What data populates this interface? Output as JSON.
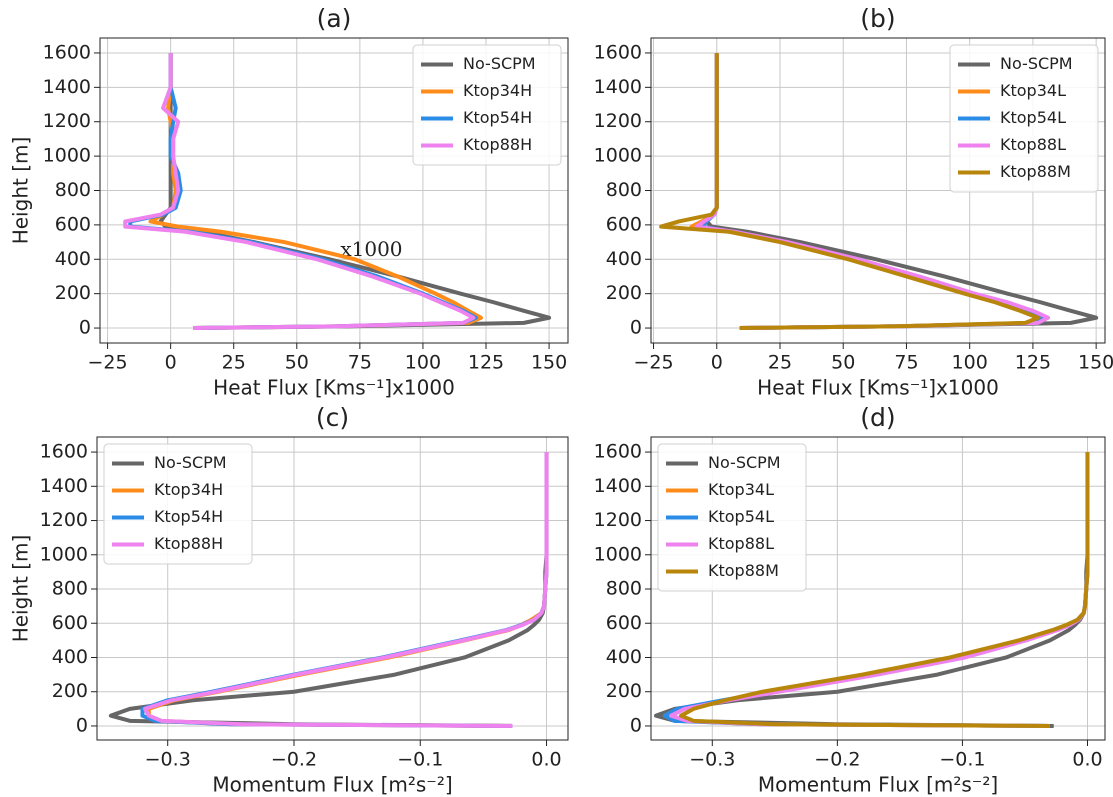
{
  "chart_data": [
    {
      "type": "line",
      "title": "(a)",
      "xlabel": "Heat Flux [Kms⁻¹]x1000",
      "ylabel": "Height [m]",
      "annotation": "x1000",
      "y": [
        0,
        10,
        30,
        60,
        100,
        150,
        200,
        300,
        400,
        500,
        560,
        590,
        620,
        660,
        700,
        800,
        900,
        1000,
        1100,
        1200,
        1280,
        1400,
        1600
      ],
      "series": [
        {
          "name": "No-SCPM",
          "color": "#666666",
          "values": [
            9,
            70,
            140,
            150,
            140,
            128,
            115,
            90,
            63,
            33,
            12,
            -2,
            -4,
            -2,
            0,
            0,
            0,
            0,
            0,
            0,
            0,
            0,
            0
          ]
        },
        {
          "name": "Ktop34H",
          "color": "#ff8c1a",
          "values": [
            9,
            65,
            118,
            123,
            118,
            112,
            105,
            90,
            73,
            45,
            20,
            3,
            -8,
            -3,
            1,
            2,
            1,
            1,
            1,
            0,
            -1,
            0,
            0
          ]
        },
        {
          "name": "Ktop54H",
          "color": "#2b8ce8",
          "values": [
            9,
            65,
            116,
            121,
            116,
            108,
            100,
            82,
            60,
            32,
            8,
            -16,
            -16,
            -3,
            2,
            4,
            3,
            0,
            0,
            1,
            2,
            0,
            0
          ]
        },
        {
          "name": "Ktop88H",
          "color": "#ee82ee",
          "values": [
            9,
            65,
            116,
            120,
            115,
            107,
            99,
            80,
            58,
            30,
            6,
            -18,
            -18,
            -4,
            1,
            3,
            2,
            1,
            1,
            3,
            -3,
            0,
            0
          ]
        }
      ],
      "xlim": [
        -28,
        157.5
      ],
      "ylim": [
        -87,
        1687
      ],
      "xticks": [
        {
          "value": -25,
          "label": "−25"
        },
        0,
        25,
        50,
        75,
        100,
        125,
        150
      ],
      "yticks": [
        0,
        200,
        400,
        600,
        800,
        1000,
        1200,
        1400,
        1600
      ],
      "grid": true,
      "legend": "upper right"
    },
    {
      "type": "line",
      "title": "(b)",
      "xlabel": "Heat Flux [Kms⁻¹]x1000",
      "y": [
        0,
        10,
        30,
        60,
        100,
        150,
        200,
        300,
        400,
        500,
        560,
        590,
        620,
        660,
        700,
        800,
        900,
        1000,
        1100,
        1200,
        1280,
        1400,
        1600
      ],
      "series": [
        {
          "name": "No-SCPM",
          "color": "#666666",
          "values": [
            9,
            70,
            140,
            150,
            140,
            128,
            115,
            90,
            63,
            33,
            12,
            -2,
            -4,
            -2,
            0,
            0,
            0,
            0,
            0,
            0,
            0,
            0,
            0
          ]
        },
        {
          "name": "Ktop34L",
          "color": "#ff8c1a",
          "values": [
            9,
            70,
            124,
            128,
            122,
            112,
            100,
            78,
            54,
            26,
            5,
            -10,
            -6,
            -1,
            0,
            0,
            0,
            0,
            0,
            0,
            0,
            0,
            0
          ]
        },
        {
          "name": "Ktop54L",
          "color": "#2b8ce8",
          "values": [
            9,
            71,
            126,
            130,
            124,
            114,
            101,
            79,
            55,
            27,
            6,
            -6,
            -4,
            -1,
            0,
            0,
            0,
            0,
            0,
            0,
            0,
            0,
            0
          ]
        },
        {
          "name": "Ktop88L",
          "color": "#ee82ee",
          "values": [
            9,
            72,
            127,
            131,
            125,
            115,
            102,
            80,
            56,
            28,
            7,
            -8,
            -5,
            -1,
            0,
            0,
            0,
            0,
            0,
            0,
            0,
            0,
            0
          ]
        },
        {
          "name": "Ktop88M",
          "color": "#b8860b",
          "values": [
            9,
            70,
            122,
            127,
            120,
            110,
            98,
            75,
            52,
            25,
            5,
            -22,
            -15,
            -2,
            0,
            0,
            0,
            0,
            0,
            0,
            0,
            0,
            0
          ]
        }
      ],
      "xlim": [
        -26,
        153.5
      ],
      "ylim": [
        -87,
        1687
      ],
      "xticks": [
        {
          "value": -25,
          "label": "−25"
        },
        0,
        25,
        50,
        75,
        100,
        125,
        150
      ],
      "yticks": [
        0,
        200,
        400,
        600,
        800,
        1000,
        1200,
        1400,
        1600
      ],
      "grid": true,
      "legend": "upper right"
    },
    {
      "type": "line",
      "title": "(c)",
      "xlabel": "Momentum Flux [m²s⁻²]",
      "ylabel": "Height [m]",
      "y": [
        0,
        10,
        30,
        60,
        100,
        150,
        200,
        300,
        400,
        500,
        560,
        590,
        620,
        660,
        700,
        800,
        900,
        1000,
        1100,
        1200,
        1280,
        1400,
        1600
      ],
      "series": [
        {
          "name": "No-SCPM",
          "color": "#666666",
          "values": [
            -0.027,
            -0.2,
            -0.33,
            -0.345,
            -0.33,
            -0.28,
            -0.2,
            -0.12,
            -0.065,
            -0.03,
            -0.015,
            -0.01,
            -0.006,
            -0.003,
            -0.002,
            -0.001,
            -0.001,
            0,
            0,
            0,
            0,
            0,
            0
          ]
        },
        {
          "name": "Ktop34H",
          "color": "#ff8c1a",
          "values": [
            -0.027,
            -0.25,
            -0.305,
            -0.315,
            -0.315,
            -0.295,
            -0.26,
            -0.195,
            -0.125,
            -0.065,
            -0.03,
            -0.02,
            -0.012,
            -0.004,
            -0.002,
            -0.001,
            0,
            0,
            0,
            0,
            0,
            0,
            0
          ]
        },
        {
          "name": "Ktop54H",
          "color": "#2b8ce8",
          "values": [
            -0.027,
            -0.25,
            -0.31,
            -0.32,
            -0.32,
            -0.3,
            -0.265,
            -0.2,
            -0.13,
            -0.068,
            -0.032,
            -0.02,
            -0.01,
            -0.004,
            -0.002,
            -0.001,
            0,
            0,
            0,
            0,
            0,
            0,
            0
          ]
        },
        {
          "name": "Ktop88H",
          "color": "#ee82ee",
          "values": [
            -0.027,
            -0.24,
            -0.305,
            -0.315,
            -0.318,
            -0.297,
            -0.262,
            -0.198,
            -0.128,
            -0.066,
            -0.031,
            -0.019,
            -0.01,
            -0.004,
            -0.002,
            -0.001,
            0,
            0,
            0,
            0,
            0,
            0,
            0
          ]
        }
      ],
      "xlim": [
        -0.356,
        0.017
      ],
      "ylim": [
        -82,
        1688
      ],
      "xticks": [
        {
          "value": -0.3,
          "label": "−0.3"
        },
        {
          "value": -0.2,
          "label": "−0.2"
        },
        {
          "value": -0.1,
          "label": "−0.1"
        },
        {
          "value": 0,
          "label": "0.0"
        }
      ],
      "yticks": [
        0,
        200,
        400,
        600,
        800,
        1000,
        1200,
        1400,
        1600
      ],
      "grid": true,
      "legend": "upper left"
    },
    {
      "type": "line",
      "title": "(d)",
      "xlabel": "Momentum Flux [m²s⁻²]",
      "y": [
        0,
        10,
        30,
        60,
        100,
        150,
        200,
        300,
        400,
        500,
        560,
        590,
        620,
        660,
        700,
        800,
        900,
        1000,
        1100,
        1200,
        1280,
        1400,
        1600
      ],
      "series": [
        {
          "name": "No-SCPM",
          "color": "#666666",
          "values": [
            -0.027,
            -0.2,
            -0.33,
            -0.345,
            -0.33,
            -0.28,
            -0.2,
            -0.12,
            -0.065,
            -0.03,
            -0.015,
            -0.01,
            -0.006,
            -0.003,
            -0.002,
            -0.001,
            -0.001,
            0,
            0,
            0,
            0,
            0,
            0
          ]
        },
        {
          "name": "Ktop34L",
          "color": "#ff8c1a",
          "values": [
            -0.03,
            -0.26,
            -0.325,
            -0.335,
            -0.325,
            -0.29,
            -0.25,
            -0.17,
            -0.1,
            -0.05,
            -0.025,
            -0.015,
            -0.008,
            -0.003,
            -0.002,
            -0.001,
            0,
            0,
            0,
            0,
            0,
            0,
            0
          ]
        },
        {
          "name": "Ktop54L",
          "color": "#2b8ce8",
          "values": [
            -0.03,
            -0.26,
            -0.33,
            -0.338,
            -0.328,
            -0.292,
            -0.252,
            -0.172,
            -0.102,
            -0.052,
            -0.026,
            -0.016,
            -0.008,
            -0.003,
            -0.002,
            -0.001,
            0,
            0,
            0,
            0,
            0,
            0,
            0
          ]
        },
        {
          "name": "Ktop88L",
          "color": "#ee82ee",
          "values": [
            -0.03,
            -0.26,
            -0.32,
            -0.333,
            -0.322,
            -0.287,
            -0.247,
            -0.168,
            -0.098,
            -0.049,
            -0.024,
            -0.014,
            -0.007,
            -0.003,
            -0.002,
            -0.001,
            0,
            0,
            0,
            0,
            0,
            0,
            0
          ]
        },
        {
          "name": "Ktop88M",
          "color": "#b8860b",
          "values": [
            -0.03,
            -0.25,
            -0.315,
            -0.325,
            -0.315,
            -0.29,
            -0.26,
            -0.18,
            -0.11,
            -0.055,
            -0.028,
            -0.017,
            -0.008,
            -0.003,
            -0.002,
            -0.001,
            0,
            0,
            0,
            0,
            0,
            0,
            0
          ]
        }
      ],
      "xlim": [
        -0.349,
        0.014
      ],
      "ylim": [
        -82,
        1688
      ],
      "xticks": [
        {
          "value": -0.3,
          "label": "−0.3"
        },
        {
          "value": -0.2,
          "label": "−0.2"
        },
        {
          "value": -0.1,
          "label": "−0.1"
        },
        {
          "value": 0,
          "label": "0.0"
        }
      ],
      "yticks": [
        0,
        200,
        400,
        600,
        800,
        1000,
        1200,
        1400,
        1600
      ],
      "grid": true,
      "legend": "upper left"
    }
  ]
}
